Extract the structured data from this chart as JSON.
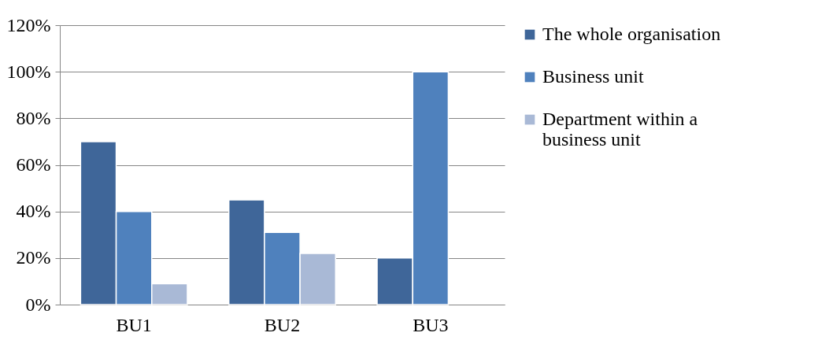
{
  "chart_data": {
    "type": "bar",
    "categories": [
      "BU1",
      "BU2",
      "BU3"
    ],
    "series": [
      {
        "name": "The whole organisation",
        "color": "#3f6699",
        "values": [
          70,
          45,
          20
        ]
      },
      {
        "name": "Business unit",
        "color": "#4f81bd",
        "values": [
          40,
          31,
          100
        ]
      },
      {
        "name": "Department within a business unit",
        "color": "#a9b9d6",
        "values": [
          9,
          22,
          null
        ]
      }
    ],
    "ylim": [
      0,
      120
    ],
    "yticks": [
      {
        "value": 0,
        "label": "0%"
      },
      {
        "value": 20,
        "label": "20%"
      },
      {
        "value": 40,
        "label": "40%"
      },
      {
        "value": 60,
        "label": "60%"
      },
      {
        "value": 80,
        "label": "80%"
      },
      {
        "value": 100,
        "label": "100%"
      },
      {
        "value": 120,
        "label": "120%"
      }
    ],
    "grid": "y",
    "legend": "right"
  }
}
